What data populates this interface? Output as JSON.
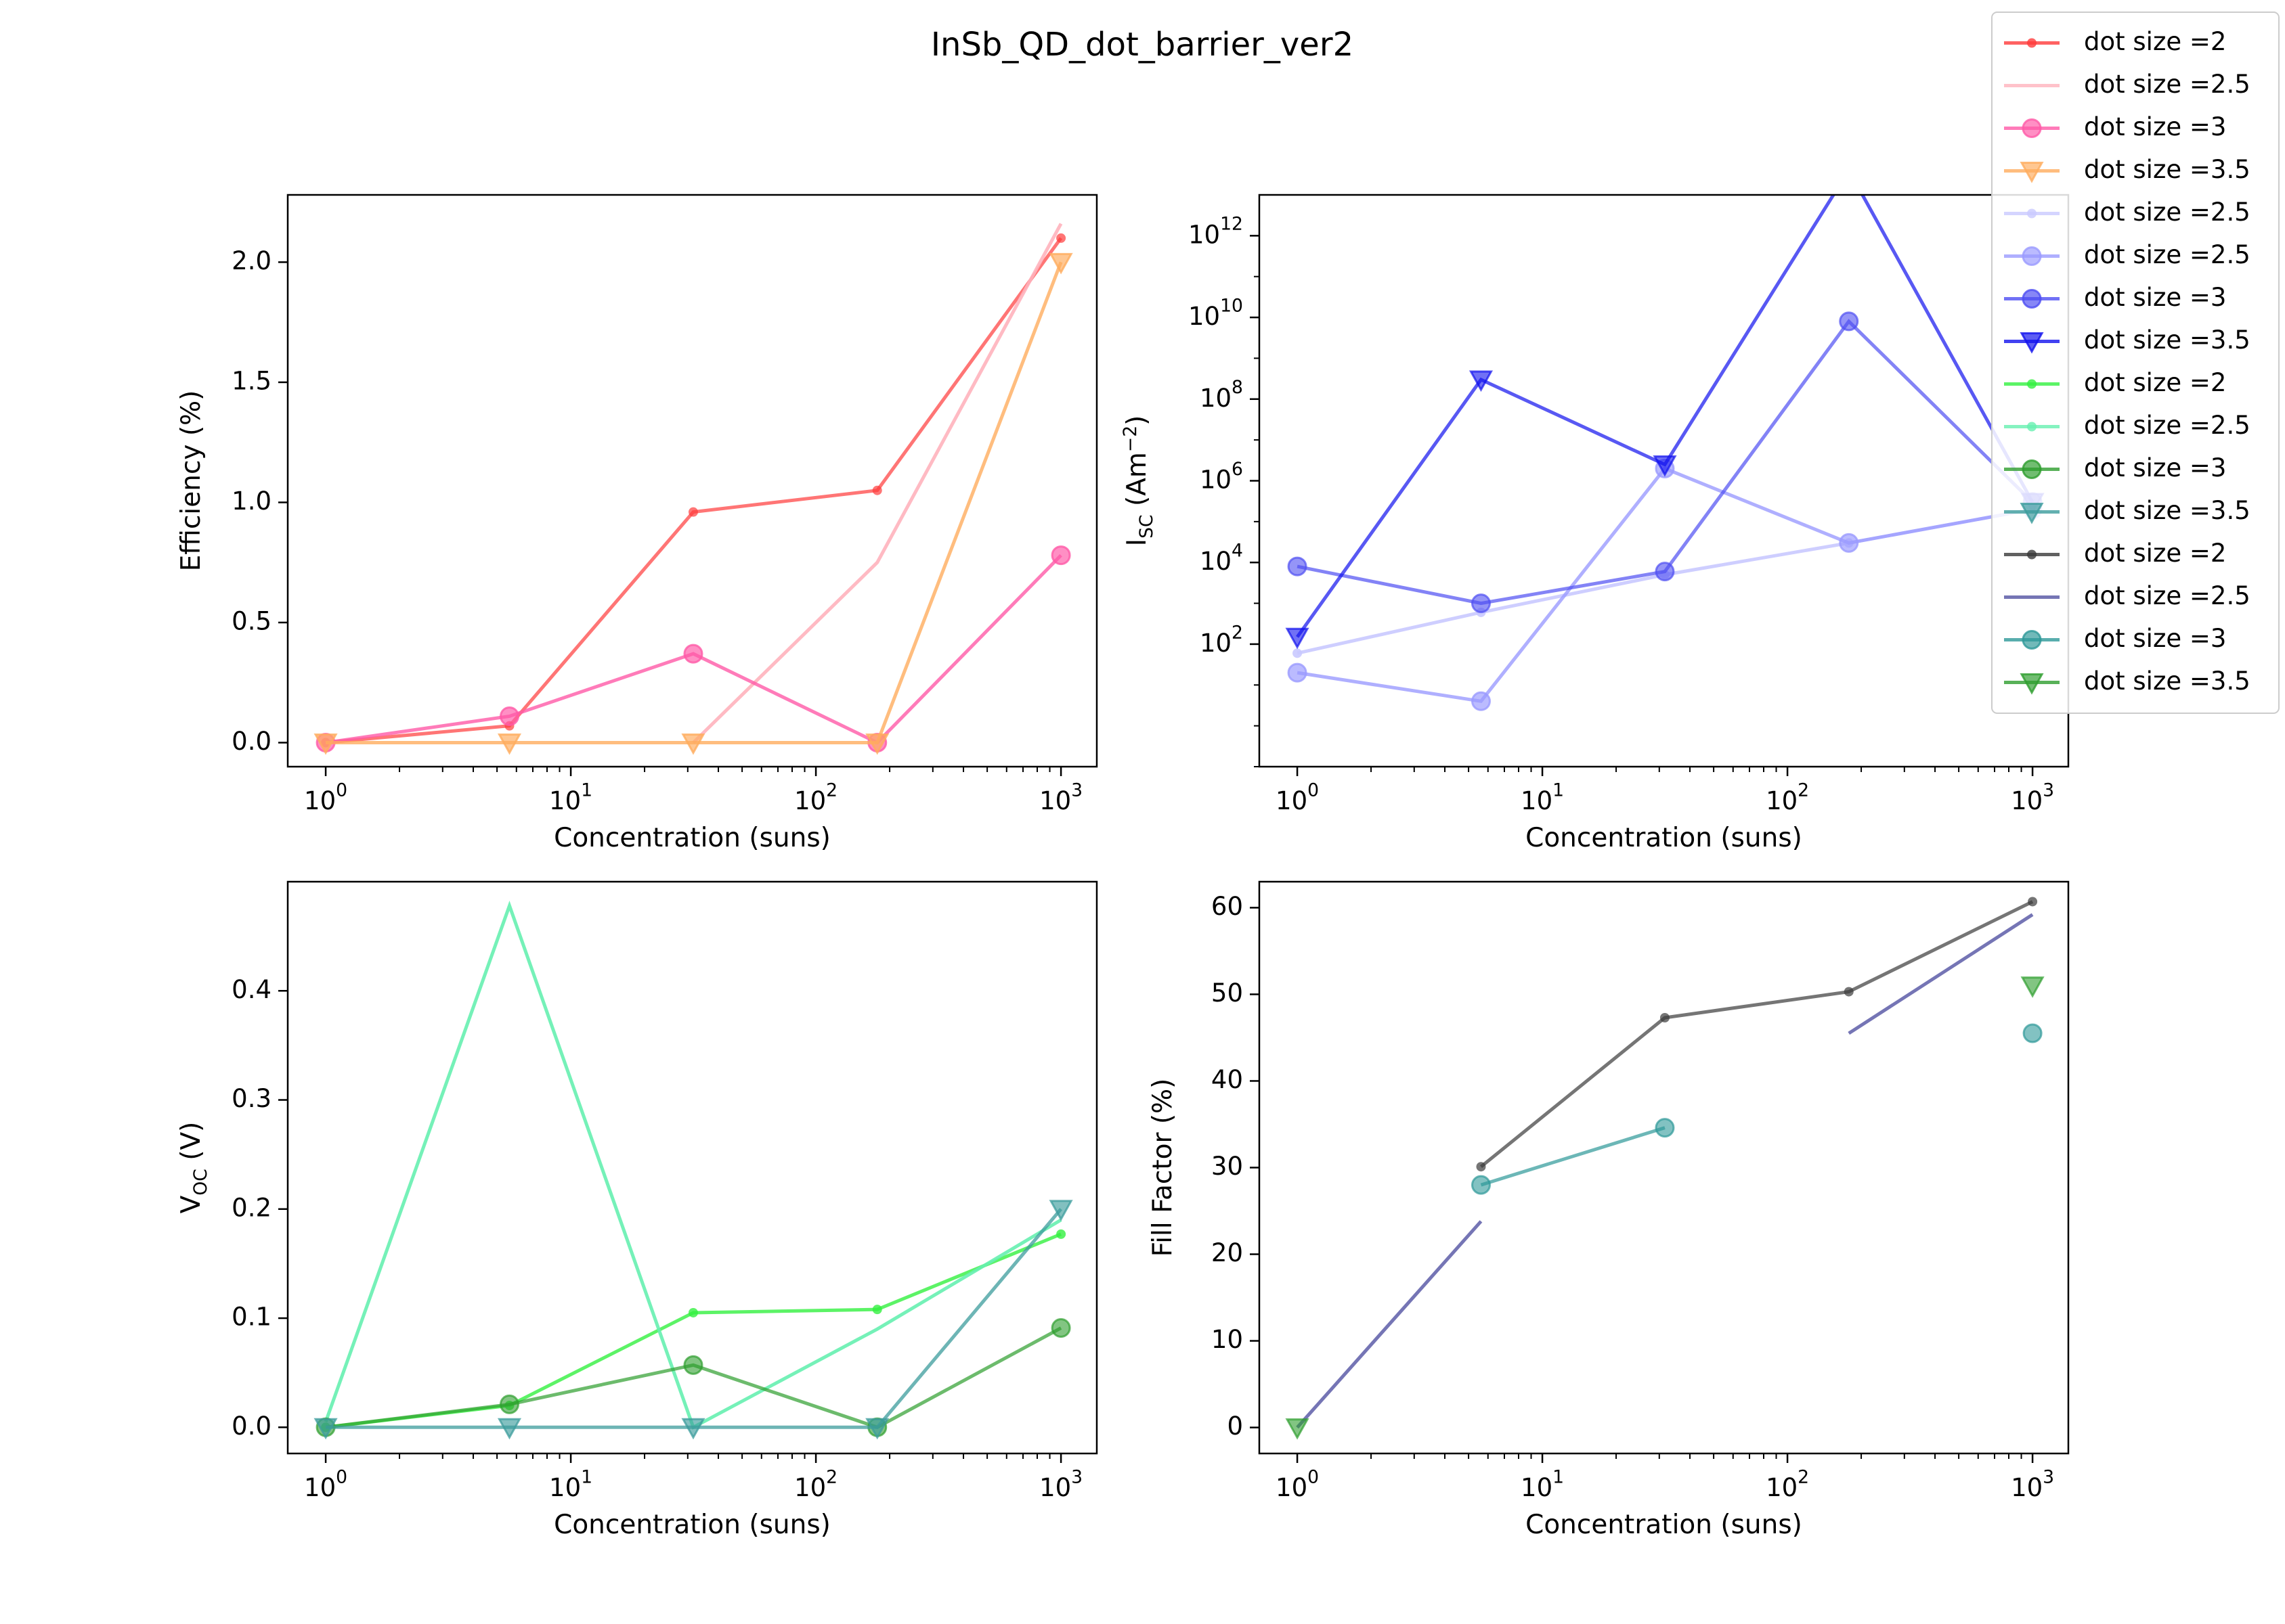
{
  "figure": {
    "title": "InSb_QD_dot_barrier_ver2"
  },
  "legend": {
    "placement": "top-right",
    "entries": [
      {
        "label": "dot size =2",
        "color": "#ff3b3b",
        "marker": "point"
      },
      {
        "label": "dot size =2.5",
        "color": "#ffb3bd",
        "marker": "none"
      },
      {
        "label": "dot size =3",
        "color": "#ff5aa8",
        "marker": "circle"
      },
      {
        "label": "dot size =3.5",
        "color": "#ffac5e",
        "marker": "triangle"
      },
      {
        "label": "dot size =2.5",
        "color": "#c9c9ff",
        "marker": "point"
      },
      {
        "label": "dot size =2.5",
        "color": "#9b9bff",
        "marker": "circle"
      },
      {
        "label": "dot size =3",
        "color": "#4e4ef2",
        "marker": "circle"
      },
      {
        "label": "dot size =3.5",
        "color": "#1111ee",
        "marker": "triangle"
      },
      {
        "label": "dot size =2",
        "color": "#33f040",
        "marker": "point"
      },
      {
        "label": "dot size =2.5",
        "color": "#66f0b0",
        "marker": "point"
      },
      {
        "label": "dot size =3",
        "color": "#2e9e2e",
        "marker": "circle"
      },
      {
        "label": "dot size =3.5",
        "color": "#3c9c9c",
        "marker": "triangle"
      },
      {
        "label": "dot size =2",
        "color": "#3a3a3a",
        "marker": "point"
      },
      {
        "label": "dot size =2.5",
        "color": "#5252a2",
        "marker": "none"
      },
      {
        "label": "dot size =3",
        "color": "#2e9898",
        "marker": "circle"
      },
      {
        "label": "dot size =3.5",
        "color": "#2e9e2e",
        "marker": "triangle"
      }
    ]
  },
  "chart_data": [
    {
      "type": "line",
      "panel": "top-left",
      "title": "",
      "xlabel": "Concentration (suns)",
      "ylabel": "Efficiency (%)",
      "xscale": "log",
      "yscale": "linear",
      "xlim": [
        0.7,
        1400
      ],
      "ylim": [
        -0.1,
        2.28
      ],
      "xticks": [
        "10⁰",
        "10¹",
        "10²",
        "10³"
      ],
      "yticks": [
        "0.0",
        "0.5",
        "1.0",
        "1.5",
        "2.0"
      ],
      "grid": false,
      "series": [
        {
          "name": "dot size =2",
          "color": "#ff3b3b",
          "marker": "point",
          "alpha": 0.7,
          "x": [
            1,
            5.62,
            31.6,
            178,
            1000
          ],
          "y": [
            0.0,
            0.07,
            0.96,
            1.05,
            2.1
          ]
        },
        {
          "name": "dot size =2.5",
          "color": "#ffb3bd",
          "marker": "none",
          "alpha": 0.9,
          "x": [
            31.6,
            178,
            1000
          ],
          "y": [
            0.0,
            0.75,
            2.16
          ]
        },
        {
          "name": "dot size =3",
          "color": "#ff5aa8",
          "marker": "circle",
          "alpha": 0.8,
          "x": [
            1,
            5.62,
            31.6,
            178,
            1000
          ],
          "y": [
            0.0,
            0.11,
            0.37,
            0.0,
            0.78
          ]
        },
        {
          "name": "dot size =3.5",
          "color": "#ffac5e",
          "marker": "triangle",
          "alpha": 0.8,
          "x": [
            1,
            5.62,
            31.6,
            178,
            1000
          ],
          "y": [
            0.0,
            0.0,
            0.0,
            0.0,
            2.0
          ]
        }
      ]
    },
    {
      "type": "line",
      "panel": "top-right",
      "title": "",
      "xlabel": "Concentration (suns)",
      "ylabel": "I_SC (Am⁻²)",
      "ylabel_parts": {
        "base": "I",
        "sub": "SC",
        "unit_open": " (Am",
        "sup": "−2",
        "unit_close": ")"
      },
      "xscale": "log",
      "yscale": "log",
      "xlim": [
        0.7,
        1400
      ],
      "ylim": [
        0.1,
        10000000000000.0
      ],
      "xticks": [
        "10⁰",
        "10¹",
        "10²",
        "10³"
      ],
      "yticks": [
        "10²",
        "10⁴",
        "10⁶",
        "10⁸",
        "10¹⁰",
        "10¹²"
      ],
      "grid": false,
      "series": [
        {
          "name": "dot size =2.5",
          "color": "#c9c9ff",
          "marker": "point",
          "alpha": 0.9,
          "x": [
            1,
            5.62,
            31.6,
            178,
            1000
          ],
          "y": [
            60,
            600,
            5000,
            30000,
            200000
          ]
        },
        {
          "name": "dot size =2.5",
          "color": "#9b9bff",
          "marker": "circle",
          "alpha": 0.8,
          "x": [
            1,
            5.62,
            31.6,
            178,
            1000
          ],
          "y": [
            20,
            4,
            2000000,
            30000,
            200000
          ]
        },
        {
          "name": "dot size =3",
          "color": "#4e4ef2",
          "marker": "circle",
          "alpha": 0.7,
          "x": [
            1,
            5.62,
            31.6,
            178,
            1000
          ],
          "y": [
            8000,
            1000,
            6000,
            8000000000,
            300000
          ]
        },
        {
          "name": "dot size =3.5",
          "color": "#1111ee",
          "marker": "triangle",
          "alpha": 0.7,
          "x": [
            1,
            5.62,
            31.6,
            178,
            1000
          ],
          "y": [
            150,
            300000000,
            2500000,
            40000000000000,
            300000
          ]
        }
      ]
    },
    {
      "type": "line",
      "panel": "bottom-left",
      "title": "",
      "xlabel": "Concentration (suns)",
      "ylabel": "V_OC (V)",
      "ylabel_parts": {
        "base": "V",
        "sub": "OC",
        "unit_open": " (V)",
        "sup": "",
        "unit_close": ""
      },
      "xscale": "log",
      "yscale": "linear",
      "xlim": [
        0.7,
        1400
      ],
      "ylim": [
        -0.024,
        0.5
      ],
      "xticks": [
        "10⁰",
        "10¹",
        "10²",
        "10³"
      ],
      "yticks": [
        "0.0",
        "0.1",
        "0.2",
        "0.3",
        "0.4"
      ],
      "grid": false,
      "series": [
        {
          "name": "dot size =2",
          "color": "#33f040",
          "marker": "point",
          "alpha": 0.8,
          "x": [
            1,
            5.62,
            31.6,
            178,
            1000
          ],
          "y": [
            0.0,
            0.02,
            0.105,
            0.108,
            0.177
          ]
        },
        {
          "name": "dot size =2.5",
          "color": "#66f0b0",
          "marker": "none",
          "alpha": 0.9,
          "x": [
            1,
            5.62,
            31.6,
            178,
            1000
          ],
          "y": [
            0.005,
            0.478,
            0.0,
            0.09,
            0.19
          ]
        },
        {
          "name": "dot size =3",
          "color": "#2e9e2e",
          "marker": "circle",
          "alpha": 0.7,
          "x": [
            1,
            5.62,
            31.6,
            178,
            1000
          ],
          "y": [
            0.0,
            0.021,
            0.057,
            0.0,
            0.091
          ]
        },
        {
          "name": "dot size =3.5",
          "color": "#3c9c9c",
          "marker": "triangle",
          "alpha": 0.75,
          "x": [
            1,
            5.62,
            31.6,
            178,
            1000
          ],
          "y": [
            0.0,
            0.0,
            0.0,
            0.0,
            0.2
          ]
        }
      ]
    },
    {
      "type": "line",
      "panel": "bottom-right",
      "title": "",
      "xlabel": "Concentration (suns)",
      "ylabel": "Fill Factor (%)",
      "xscale": "log",
      "yscale": "linear",
      "xlim": [
        0.7,
        1400
      ],
      "ylim": [
        -3,
        63
      ],
      "xticks": [
        "10⁰",
        "10¹",
        "10²",
        "10³"
      ],
      "yticks": [
        "0",
        "10",
        "20",
        "30",
        "40",
        "50",
        "60"
      ],
      "grid": false,
      "series": [
        {
          "name": "dot size =2",
          "color": "#3a3a3a",
          "marker": "point",
          "alpha": 0.7,
          "x": [
            5.62,
            31.6,
            178,
            1000
          ],
          "y": [
            30.1,
            47.3,
            50.3,
            60.7
          ]
        },
        {
          "name": "dot size =2.5",
          "color": "#5252a2",
          "marker": "none",
          "alpha": 0.8,
          "segments": [
            {
              "x": [
                1,
                5.62
              ],
              "y": [
                0.0,
                23.8
              ]
            },
            {
              "x": [
                178,
                1000
              ],
              "y": [
                45.5,
                59.2
              ]
            }
          ]
        },
        {
          "name": "dot size =3",
          "color": "#2e9898",
          "marker": "circle",
          "alpha": 0.7,
          "x": [
            5.62,
            31.6,
            1000
          ],
          "y": [
            28.0,
            34.6,
            45.5
          ],
          "connect": [
            true,
            true,
            false
          ]
        },
        {
          "name": "dot size =3.5",
          "color": "#2e9e2e",
          "marker": "triangle",
          "alpha": 0.7,
          "x": [
            1,
            1000
          ],
          "y": [
            0.0,
            51.0
          ],
          "connect": [
            false,
            false
          ]
        }
      ]
    }
  ]
}
